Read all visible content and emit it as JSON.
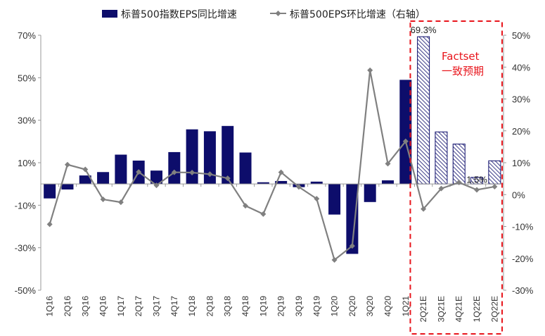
{
  "chart_data": {
    "type": "bar",
    "categories": [
      "1Q16",
      "2Q16",
      "3Q16",
      "4Q16",
      "1Q17",
      "2Q17",
      "3Q17",
      "4Q17",
      "1Q18",
      "2Q18",
      "3Q18",
      "4Q18",
      "1Q19",
      "2Q19",
      "3Q19",
      "4Q19",
      "1Q20",
      "2Q20",
      "3Q20",
      "4Q20",
      "1Q21",
      "2Q21E",
      "3Q21E",
      "4Q21E",
      "1Q22E",
      "2Q22E"
    ],
    "forecast_start_index": 21,
    "series": [
      {
        "name": "标普500指数EPS同比增速",
        "type": "bar",
        "axis": "left",
        "color": "#0d0d6b",
        "values": [
          -6.8,
          -2.6,
          4.0,
          5.6,
          13.8,
          11.0,
          6.3,
          15.0,
          25.7,
          24.8,
          27.3,
          14.8,
          0.8,
          1.4,
          -1.5,
          1.1,
          -14.4,
          -32.9,
          -8.5,
          1.7,
          49.0,
          69.3,
          24.5,
          18.8,
          3.1,
          10.9
        ]
      },
      {
        "name": "标普500EPS环比增速（右轴）",
        "type": "line",
        "axis": "right",
        "color": "#808080",
        "values": [
          -9.3,
          9.4,
          7.9,
          -1.5,
          -2.4,
          7.1,
          2.9,
          7.0,
          6.9,
          6.4,
          5.1,
          -3.5,
          -6.1,
          7.0,
          2.4,
          -1.3,
          -20.5,
          -16.1,
          39.0,
          9.7,
          16.7,
          -4.5,
          1.9,
          3.8,
          1.5,
          2.5
        ]
      }
    ],
    "y_left": {
      "ticks": [
        "70%",
        "50%",
        "30%",
        "10%",
        "-10%",
        "-30%",
        "-50%"
      ],
      "lim": [
        -50,
        70
      ]
    },
    "y_right": {
      "ticks": [
        "50%",
        "40%",
        "30%",
        "20%",
        "10%",
        "0%",
        "-10%",
        "-20%",
        "-30%"
      ],
      "lim": [
        -30,
        50
      ]
    },
    "data_labels": [
      {
        "series": 0,
        "index": 21,
        "text": "69.3%"
      },
      {
        "series": 1,
        "index": 24,
        "text": "1.5%"
      }
    ],
    "annotation": {
      "lines": [
        "Factset",
        "一致预期"
      ],
      "color": "#e8141b"
    },
    "legend": "top"
  }
}
